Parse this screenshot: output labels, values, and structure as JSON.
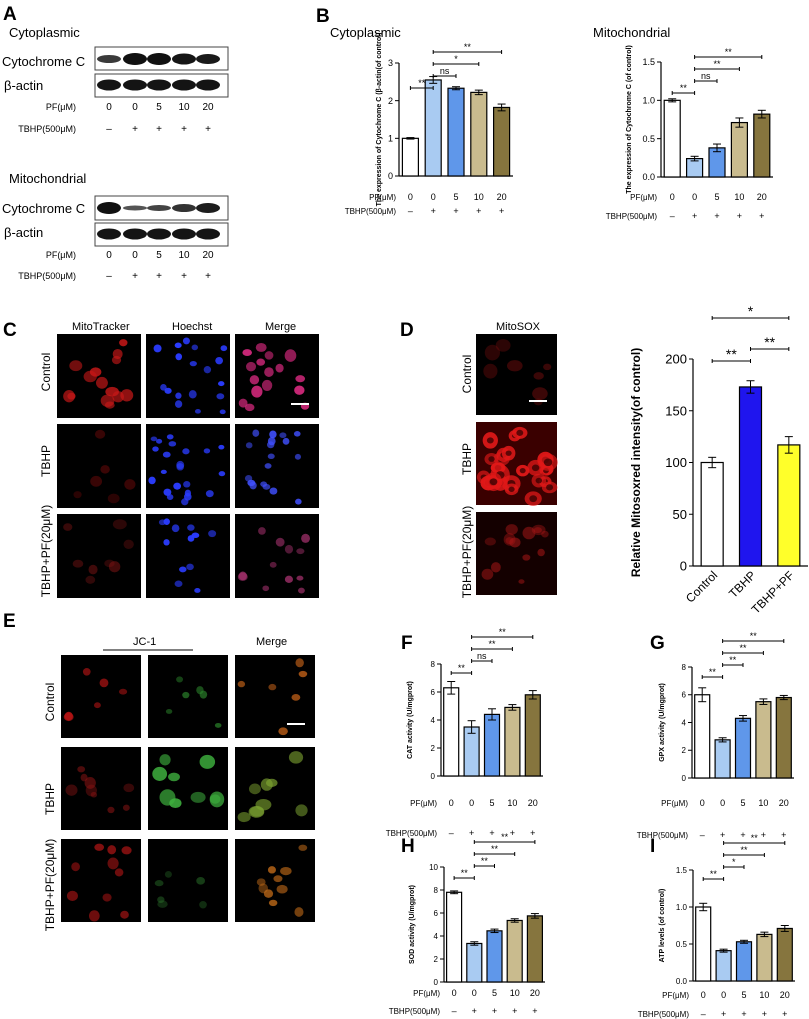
{
  "panel_letters": [
    "A",
    "B",
    "C",
    "D",
    "E",
    "F",
    "G",
    "H",
    "I"
  ],
  "A": {
    "cyto_title": "Cytoplasmic",
    "mito_title": "Mitochondrial",
    "band_labels": [
      "Cytochrome C",
      "β-actin"
    ],
    "pf_label": "PF(μM)",
    "tbhp_label": "TBHP(500μM)",
    "pf_values": [
      "0",
      "0",
      "5",
      "10",
      "20"
    ],
    "tbhp_values": [
      "–",
      "+",
      "+",
      "+",
      "+"
    ]
  },
  "C": {
    "col_labels": [
      "MitoTracker",
      "Hoechst",
      "Merge"
    ],
    "row_labels": [
      "Control",
      "TBHP",
      "TBHP+PF(20μM)"
    ]
  },
  "D": {
    "col_label": "MitoSOX",
    "row_labels": [
      "Control",
      "TBHP",
      "TBHP+PF(20μM)"
    ]
  },
  "E": {
    "jc1_label": "JC-1",
    "merge_label": "Merge",
    "row_labels": [
      "Control",
      "TBHP",
      "TBHP+PF(20μM)"
    ]
  },
  "treat": {
    "pf_label": "PF(μM)",
    "tbhp_label": "TBHP(500μM)",
    "pf_values": [
      "0",
      "0",
      "5",
      "10",
      "20"
    ],
    "tbhp_values": [
      "–",
      "+",
      "+",
      "+",
      "+"
    ]
  },
  "colors": {
    "ctrl": "#ffffff",
    "tbhp": "#a9cbf2",
    "pf5": "#5f97ea",
    "pf10": "#c9bb8e",
    "pf20": "#86753e",
    "d_ctrl": "#ffffff",
    "d_tbhp": "#1f15ee",
    "d_pf": "#ffff2a"
  },
  "chart_data": [
    {
      "panel": "B",
      "title": "Cytoplasmic",
      "type": "bar",
      "ylabel": "The expression of Cytochrome C (β-actin(of control)",
      "categories": [
        "0",
        "0",
        "5",
        "10",
        "20"
      ],
      "values": [
        1.0,
        2.55,
        2.33,
        2.22,
        1.82
      ],
      "errors": [
        0.02,
        0.09,
        0.04,
        0.06,
        0.09
      ],
      "ylim": [
        0,
        3
      ],
      "yticks": [
        "0",
        "1",
        "2",
        "3"
      ],
      "significance": [
        {
          "from": 0,
          "to": 1,
          "label": "**"
        },
        {
          "from": 1,
          "to": 2,
          "label": "ns"
        },
        {
          "from": 1,
          "to": 3,
          "label": "*"
        },
        {
          "from": 1,
          "to": 4,
          "label": "**"
        }
      ]
    },
    {
      "panel": "B",
      "title": "Mitochondrial",
      "type": "bar",
      "ylabel": "The expression of Cytochrome C (of control)",
      "categories": [
        "0",
        "0",
        "5",
        "10",
        "20"
      ],
      "values": [
        1.0,
        0.24,
        0.38,
        0.71,
        0.82
      ],
      "errors": [
        0.02,
        0.03,
        0.05,
        0.06,
        0.05
      ],
      "ylim": [
        0,
        1.5
      ],
      "yticks": [
        "0.0",
        "0.5",
        "1.0",
        "1.5"
      ],
      "significance": [
        {
          "from": 0,
          "to": 1,
          "label": "**"
        },
        {
          "from": 1,
          "to": 2,
          "label": "ns"
        },
        {
          "from": 1,
          "to": 3,
          "label": "**"
        },
        {
          "from": 1,
          "to": 4,
          "label": "**"
        }
      ]
    },
    {
      "panel": "D",
      "type": "bar",
      "ylabel": "Relative Mitosoxred intensity(of control)",
      "categories": [
        "Control",
        "TBHP",
        "TBHP+PF"
      ],
      "values": [
        100,
        173,
        117
      ],
      "errors": [
        5,
        6,
        8
      ],
      "ylim": [
        0,
        200
      ],
      "yticks": [
        "0",
        "50",
        "100",
        "150",
        "200"
      ],
      "significance": [
        {
          "from": 0,
          "to": 1,
          "label": "**"
        },
        {
          "from": 1,
          "to": 2,
          "label": "**"
        },
        {
          "from": 0,
          "to": 2,
          "label": "*"
        }
      ]
    },
    {
      "panel": "F",
      "type": "bar",
      "ylabel": "CAT activity (U/mgprot)",
      "categories": [
        "0",
        "0",
        "5",
        "10",
        "20"
      ],
      "values": [
        6.3,
        3.5,
        4.4,
        4.9,
        5.8
      ],
      "errors": [
        0.45,
        0.45,
        0.4,
        0.2,
        0.3
      ],
      "ylim": [
        0,
        8
      ],
      "yticks": [
        "0",
        "2",
        "4",
        "6",
        "8"
      ],
      "significance": [
        {
          "from": 0,
          "to": 1,
          "label": "**"
        },
        {
          "from": 1,
          "to": 2,
          "label": "ns"
        },
        {
          "from": 1,
          "to": 3,
          "label": "**"
        },
        {
          "from": 1,
          "to": 4,
          "label": "**"
        }
      ]
    },
    {
      "panel": "G",
      "type": "bar",
      "ylabel": "GPX activity (U/mgprot)",
      "categories": [
        "0",
        "0",
        "5",
        "10",
        "20"
      ],
      "values": [
        6.0,
        2.75,
        4.3,
        5.5,
        5.8
      ],
      "errors": [
        0.5,
        0.15,
        0.2,
        0.2,
        0.15
      ],
      "ylim": [
        0,
        8
      ],
      "yticks": [
        "0",
        "2",
        "4",
        "6",
        "8"
      ],
      "significance": [
        {
          "from": 0,
          "to": 1,
          "label": "**"
        },
        {
          "from": 1,
          "to": 2,
          "label": "**"
        },
        {
          "from": 1,
          "to": 3,
          "label": "**"
        },
        {
          "from": 1,
          "to": 4,
          "label": "**"
        }
      ]
    },
    {
      "panel": "H",
      "type": "bar",
      "ylabel": "SOD activity (U/mgprot)",
      "categories": [
        "0",
        "0",
        "5",
        "10",
        "20"
      ],
      "values": [
        7.8,
        3.35,
        4.45,
        5.35,
        5.75
      ],
      "errors": [
        0.12,
        0.15,
        0.15,
        0.15,
        0.2
      ],
      "ylim": [
        0,
        10
      ],
      "yticks": [
        "0",
        "2",
        "4",
        "6",
        "8",
        "10"
      ],
      "significance": [
        {
          "from": 0,
          "to": 1,
          "label": "**"
        },
        {
          "from": 1,
          "to": 2,
          "label": "**"
        },
        {
          "from": 1,
          "to": 3,
          "label": "**"
        },
        {
          "from": 1,
          "to": 4,
          "label": "**"
        }
      ]
    },
    {
      "panel": "I",
      "type": "bar",
      "ylabel": "ATP levels (of control)",
      "categories": [
        "0",
        "0",
        "5",
        "10",
        "20"
      ],
      "values": [
        1.0,
        0.41,
        0.53,
        0.63,
        0.71
      ],
      "errors": [
        0.05,
        0.02,
        0.02,
        0.03,
        0.04
      ],
      "ylim": [
        0,
        1.5
      ],
      "yticks": [
        "0.0",
        "0.5",
        "1.0",
        "1.5"
      ],
      "significance": [
        {
          "from": 0,
          "to": 1,
          "label": "**"
        },
        {
          "from": 1,
          "to": 2,
          "label": "*"
        },
        {
          "from": 1,
          "to": 3,
          "label": "**"
        },
        {
          "from": 1,
          "to": 4,
          "label": "**"
        }
      ]
    }
  ]
}
